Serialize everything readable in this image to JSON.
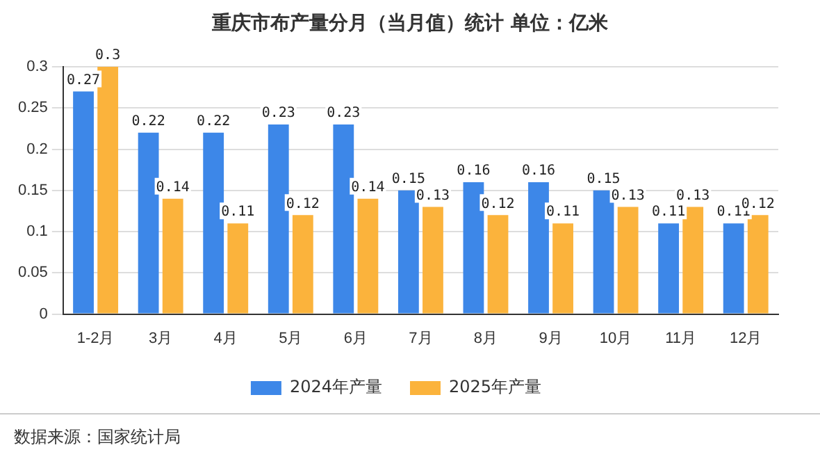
{
  "chart_data": {
    "type": "bar",
    "title": "重庆市布产量分月（当月值）统计 单位：亿米",
    "categories": [
      "1-2月",
      "3月",
      "4月",
      "5月",
      "6月",
      "7月",
      "8月",
      "9月",
      "10月",
      "11月",
      "12月"
    ],
    "series": [
      {
        "name": "2024年产量",
        "color": "#3d87e8",
        "values": [
          0.27,
          0.22,
          0.22,
          0.23,
          0.23,
          0.15,
          0.16,
          0.16,
          0.15,
          0.11,
          0.11
        ]
      },
      {
        "name": "2025年产量",
        "color": "#fbb33c",
        "values": [
          0.3,
          0.14,
          0.11,
          0.12,
          0.14,
          0.13,
          0.12,
          0.11,
          0.13,
          0.13,
          0.12
        ]
      }
    ],
    "ylim": [
      0,
      0.3
    ],
    "yticks": [
      0,
      0.05,
      0.1,
      0.15,
      0.2,
      0.25,
      0.3
    ],
    "grid": "y",
    "legend": "bottom",
    "data_labels": true,
    "annotations": [
      "数据来源：国家统计局"
    ]
  }
}
